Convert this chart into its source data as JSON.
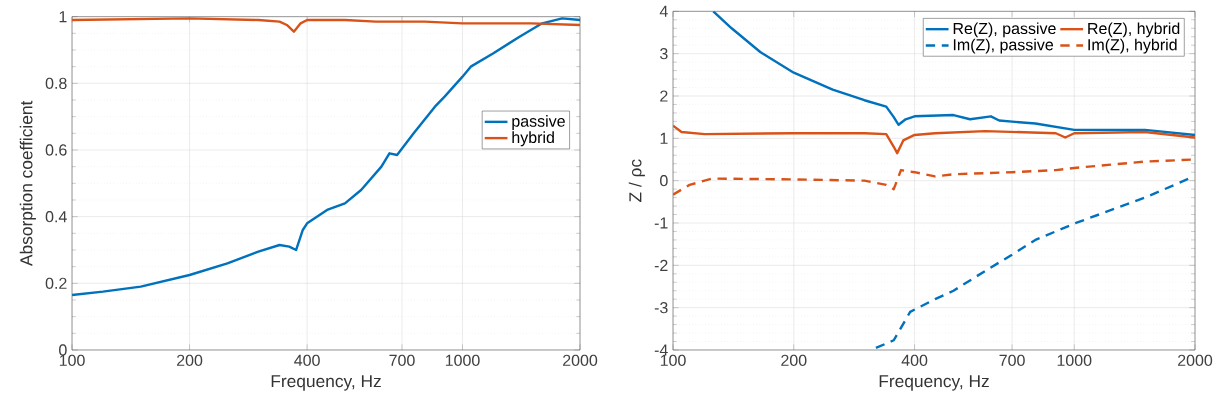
{
  "chart_data": [
    {
      "type": "line",
      "xlabel": "Frequency, Hz",
      "ylabel": "Absorption coefficient",
      "log": "x",
      "grid": true,
      "legend": "right",
      "xlim": [
        100,
        2000
      ],
      "xticks": [
        100,
        200,
        400,
        700,
        1000,
        2000
      ],
      "ylim": [
        0,
        1
      ],
      "yticks": [
        0,
        0.2,
        0.4,
        0.6,
        0.8,
        1
      ],
      "series": [
        {
          "name": "passive",
          "color": "#0072bd",
          "line_style": "solid",
          "x": [
            100,
            120,
            150,
            200,
            250,
            300,
            340,
            360,
            375,
            390,
            400,
            450,
            500,
            550,
            620,
            650,
            680,
            750,
            850,
            900,
            1000,
            1050,
            1200,
            1400,
            1600,
            1800,
            2000
          ],
          "values": [
            0.165,
            0.175,
            0.19,
            0.225,
            0.26,
            0.295,
            0.315,
            0.31,
            0.3,
            0.36,
            0.38,
            0.42,
            0.44,
            0.48,
            0.55,
            0.59,
            0.585,
            0.65,
            0.73,
            0.76,
            0.82,
            0.85,
            0.89,
            0.94,
            0.98,
            0.995,
            0.99
          ]
        },
        {
          "name": "hybrid",
          "color": "#d95319",
          "line_style": "solid",
          "x": [
            100,
            200,
            300,
            340,
            355,
            370,
            385,
            400,
            500,
            600,
            800,
            1000,
            1500,
            2000
          ],
          "values": [
            0.99,
            0.995,
            0.99,
            0.985,
            0.975,
            0.955,
            0.98,
            0.99,
            0.99,
            0.985,
            0.985,
            0.98,
            0.98,
            0.975
          ]
        }
      ]
    },
    {
      "type": "line",
      "xlabel": "Frequency, Hz",
      "ylabel": "Z / ρc",
      "log": "x",
      "grid": true,
      "legend": "top right",
      "xlim": [
        100,
        2000
      ],
      "xticks": [
        100,
        200,
        400,
        700,
        1000,
        2000
      ],
      "ylim": [
        -4,
        4
      ],
      "yticks": [
        -4,
        -3,
        -2,
        -1,
        0,
        1,
        2,
        3,
        4
      ],
      "series": [
        {
          "name": "Re(Z), passive",
          "color": "#0072bd",
          "line_style": "solid",
          "x": [
            126,
            140,
            165,
            200,
            250,
            300,
            340,
            355,
            365,
            380,
            400,
            500,
            550,
            620,
            650,
            800,
            1000,
            1500,
            2000
          ],
          "values": [
            4,
            3.6,
            3.04,
            2.55,
            2.15,
            1.9,
            1.75,
            1.5,
            1.32,
            1.45,
            1.52,
            1.55,
            1.45,
            1.52,
            1.42,
            1.35,
            1.2,
            1.2,
            1.08
          ]
        },
        {
          "name": "Re(Z), hybrid",
          "color": "#d95319",
          "line_style": "solid",
          "x": [
            100,
            105,
            120,
            200,
            300,
            340,
            355,
            362,
            375,
            400,
            450,
            600,
            900,
            950,
            1000,
            1500,
            2000
          ],
          "values": [
            1.3,
            1.15,
            1.1,
            1.12,
            1.12,
            1.1,
            0.8,
            0.65,
            0.95,
            1.08,
            1.12,
            1.17,
            1.12,
            1.02,
            1.12,
            1.15,
            1.02
          ]
        },
        {
          "name": "Im(Z), passive",
          "color": "#0072bd",
          "line_style": "dashed",
          "x": [
            312,
            355,
            390,
            450,
            500,
            610,
            700,
            800,
            1010,
            1500,
            1923
          ],
          "values": [
            -4,
            -3.77,
            -3.1,
            -2.8,
            -2.6,
            -2.09,
            -1.75,
            -1.4,
            -1.0,
            -0.4,
            0.04
          ]
        },
        {
          "name": "Im(Z), hybrid",
          "color": "#d95319",
          "line_style": "dashed",
          "x": [
            100,
            110,
            125,
            200,
            300,
            340,
            355,
            370,
            400,
            450,
            500,
            700,
            900,
            1000,
            1500,
            2000
          ],
          "values": [
            -0.33,
            -0.1,
            0.05,
            0.03,
            0.0,
            -0.1,
            -0.2,
            0.25,
            0.2,
            0.1,
            0.15,
            0.2,
            0.25,
            0.3,
            0.45,
            0.5
          ]
        }
      ]
    }
  ]
}
